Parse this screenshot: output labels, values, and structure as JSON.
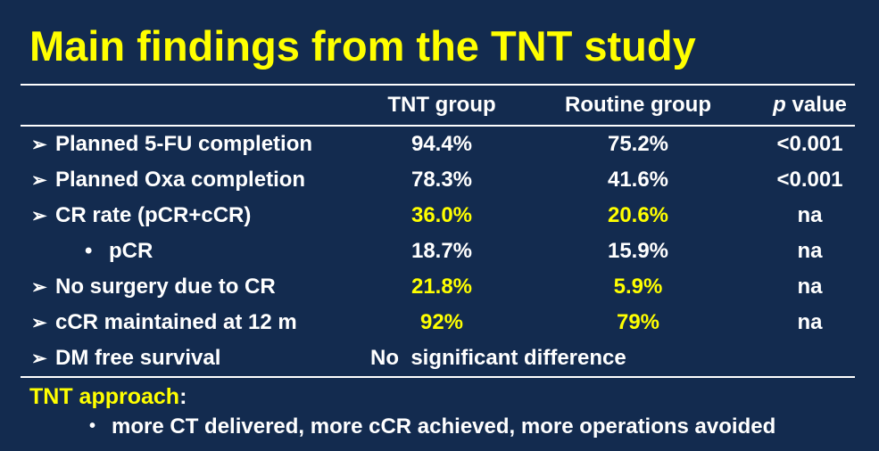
{
  "colors": {
    "background": "#132b4f",
    "accent_yellow": "#ffff00",
    "text_white": "#ffffff",
    "line": "#ffffff"
  },
  "title": "Main findings from the TNT study",
  "glyphs": {
    "arrow_bullet": "➢",
    "dot_bullet": "•"
  },
  "table": {
    "headers": {
      "tnt": "TNT group",
      "routine": "Routine group",
      "p_italic": "p",
      "p_rest": "value"
    },
    "rows": [
      {
        "bullet": "arrow",
        "label": "Planned 5-FU completion",
        "tnt": "94.4%",
        "routine": "75.2%",
        "p": "<0.001",
        "highlight": false
      },
      {
        "bullet": "arrow",
        "label": "Planned Oxa completion",
        "tnt": "78.3%",
        "routine": "41.6%",
        "p": "<0.001",
        "highlight": false
      },
      {
        "bullet": "arrow",
        "label": "CR rate (pCR+cCR)",
        "tnt": "36.0%",
        "routine": "20.6%",
        "p": "na",
        "highlight": true
      },
      {
        "bullet": "dot",
        "label": "pCR",
        "tnt": "18.7%",
        "routine": "15.9%",
        "p": "na",
        "highlight": false
      },
      {
        "bullet": "arrow",
        "label": "No surgery due to CR",
        "tnt": "21.8%",
        "routine": "5.9%",
        "p": "na",
        "highlight": true
      },
      {
        "bullet": "arrow",
        "label": "cCR maintained at 12 m",
        "tnt": "92%",
        "routine": "79%",
        "p": "na",
        "highlight": true
      },
      {
        "bullet": "arrow",
        "label": "DM free survival",
        "span": "No  significant difference",
        "highlight": false
      }
    ]
  },
  "footer": {
    "heading": "TNT approach",
    "colon": ":",
    "bullet_text": "more CT delivered, more cCR achieved, more operations avoided"
  }
}
